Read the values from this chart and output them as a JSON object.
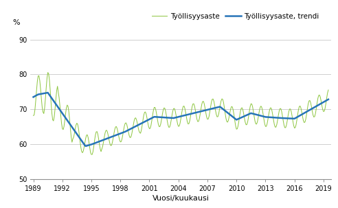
{
  "title": "",
  "ylabel": "%",
  "xlabel": "Vuosi/kuukausi",
  "legend_labels": [
    "Työllisyysaste",
    "Työllisyysaste, trendi"
  ],
  "line_color_raw": "#8dc63f",
  "line_color_trend": "#2674b8",
  "ylim": [
    50,
    93
  ],
  "yticks": [
    50,
    60,
    70,
    80,
    90
  ],
  "xticks": [
    1989,
    1992,
    1995,
    1998,
    2001,
    2004,
    2007,
    2010,
    2013,
    2016,
    2019
  ],
  "bg_color": "#ffffff",
  "grid_color": "#c8c8c8",
  "raw_linewidth": 0.7,
  "trend_linewidth": 1.8
}
